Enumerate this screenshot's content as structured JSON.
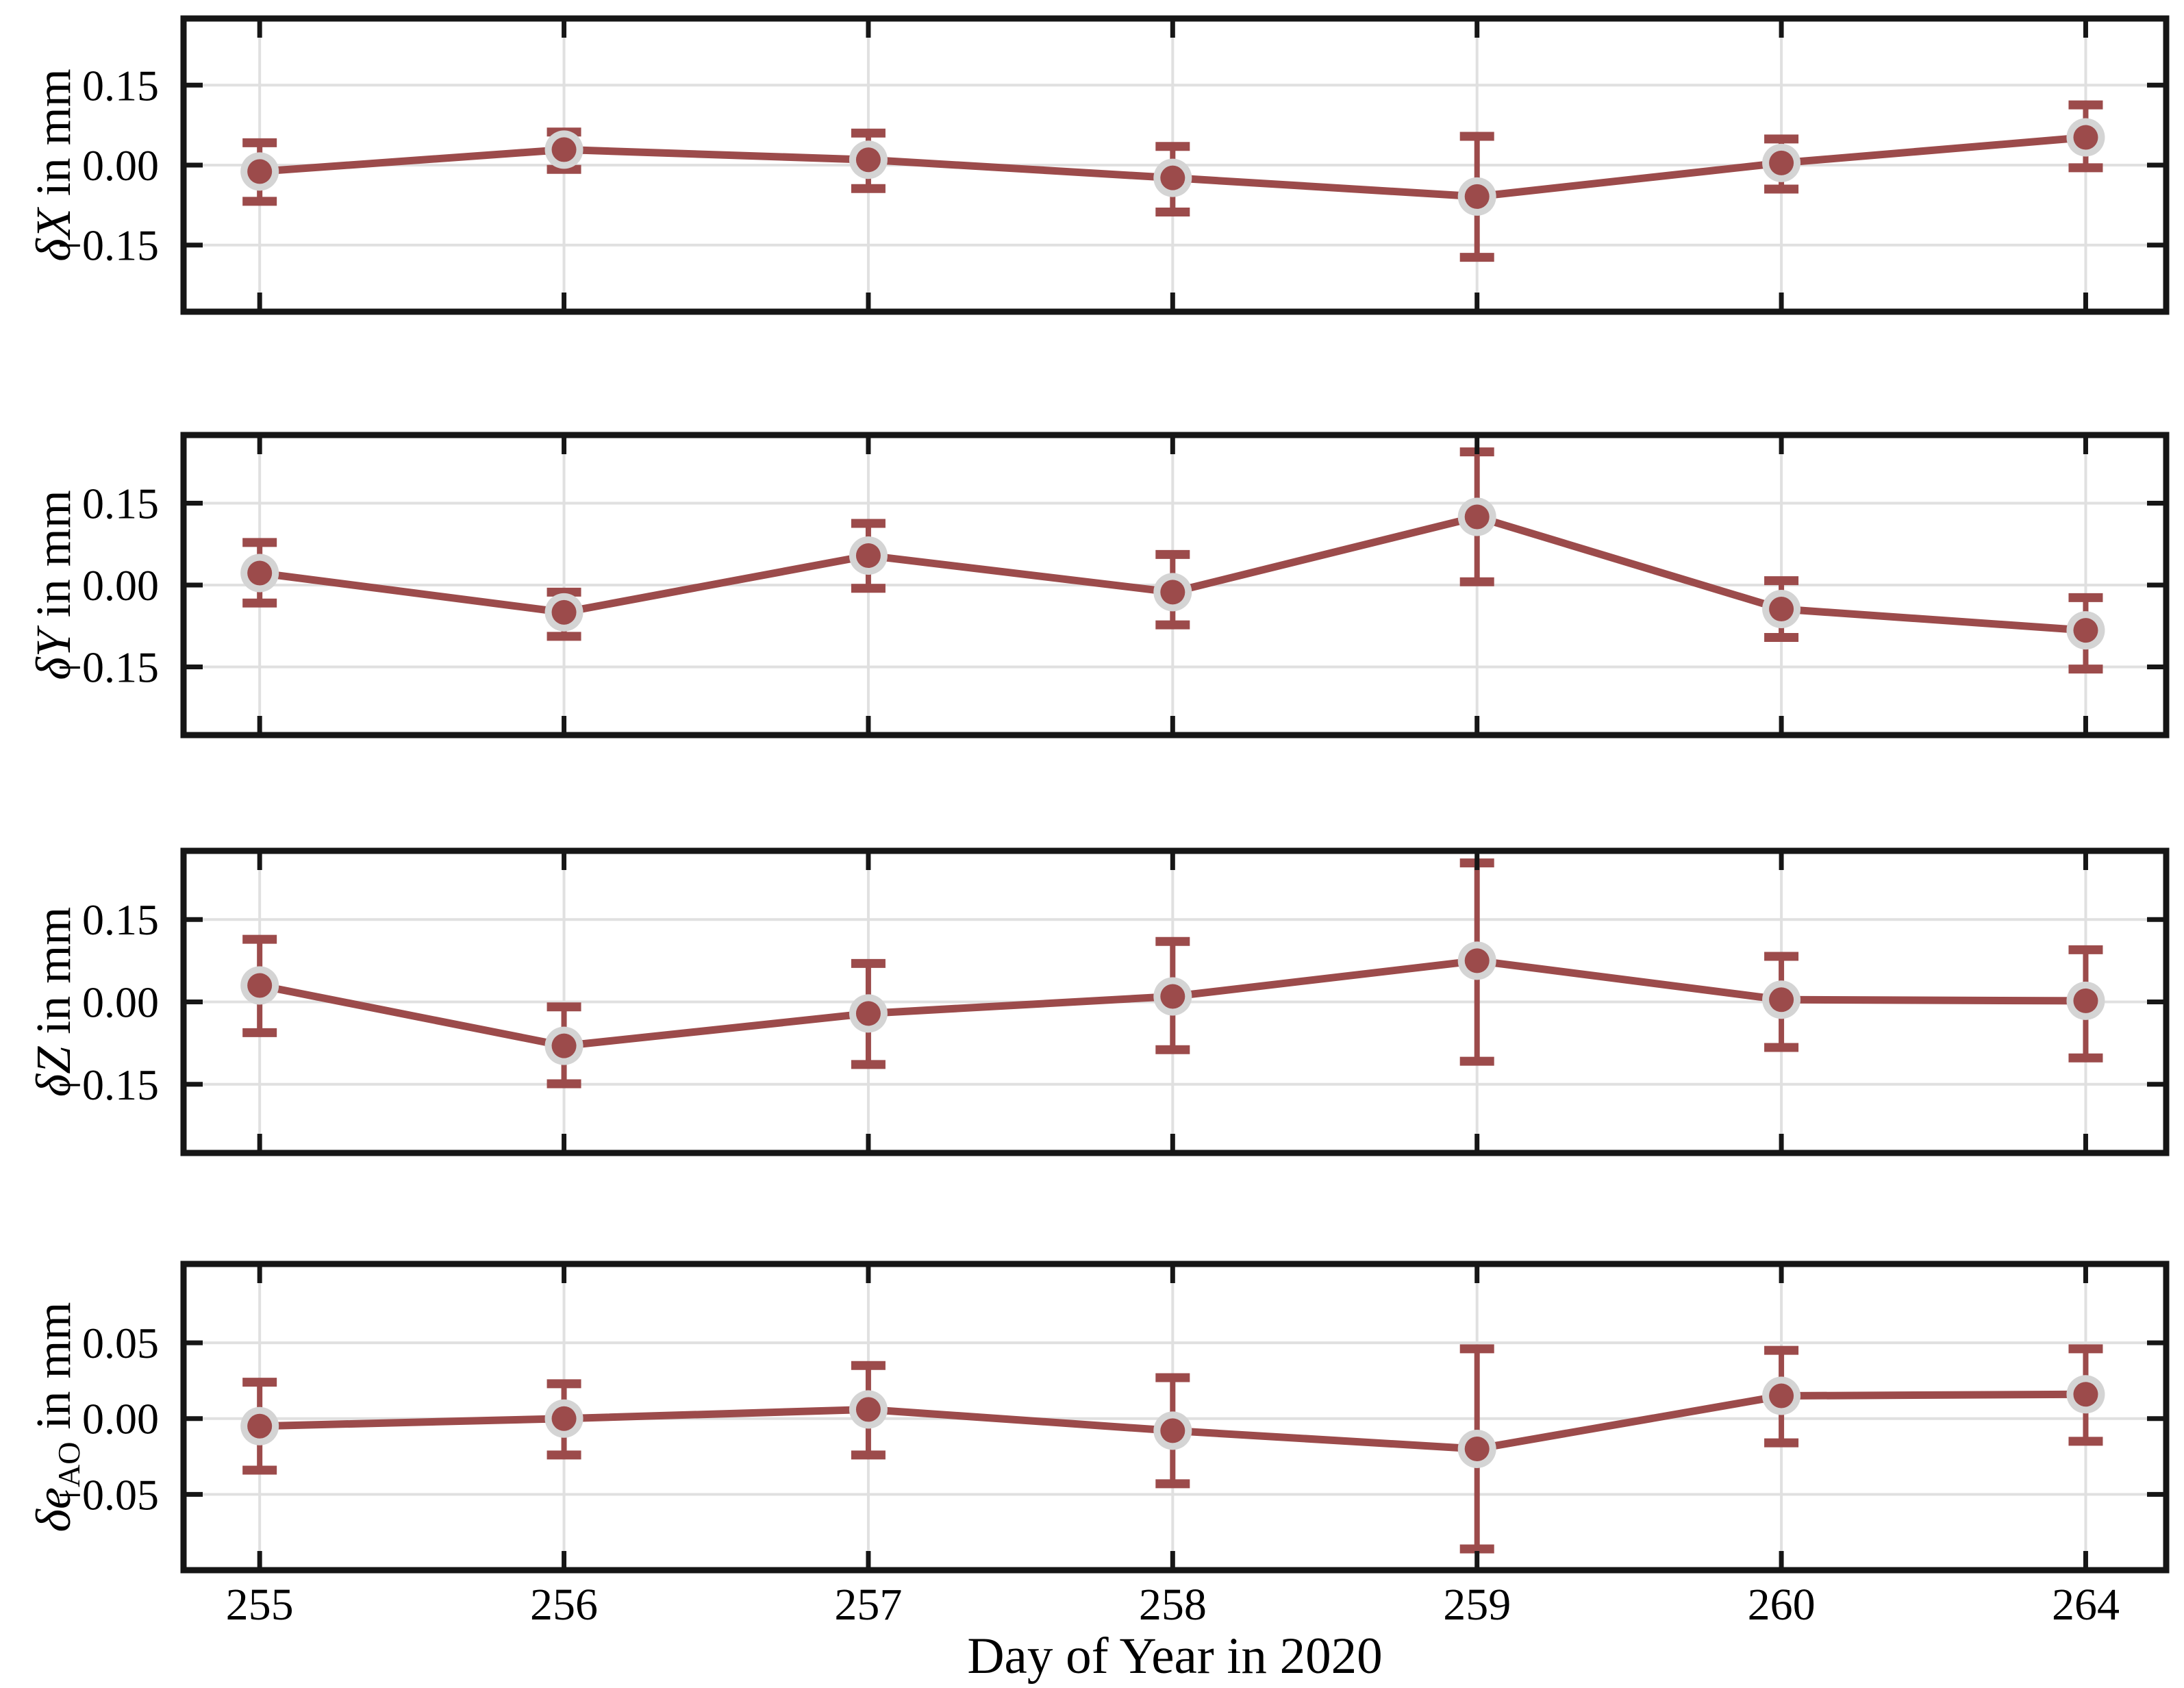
{
  "figure": {
    "type": "multi-panel-errorbar-line",
    "colors": {
      "series": "#9c4b4b",
      "marker_ring": "#d4d4d4",
      "grid": "#e0e0e0",
      "axis": "#161616",
      "text": "#000000",
      "background": "#ffffff"
    }
  },
  "x_axis": {
    "label": "Day of Year in 2020",
    "tick_labels": [
      "255",
      "256",
      "257",
      "258",
      "259",
      "260",
      "264"
    ],
    "tick_values": [
      255,
      256,
      257,
      258,
      259,
      260,
      264
    ]
  },
  "chart_data": [
    {
      "id": "delta-x",
      "type": "line",
      "title": "",
      "ylabel": {
        "var": "δX",
        "sub": "",
        "unit": " in mm"
      },
      "ylim": [
        -0.275,
        0.275
      ],
      "grid": true,
      "legend": "none",
      "yticks": [
        {
          "value": 0.15,
          "label": "0.15"
        },
        {
          "value": 0.0,
          "label": "0.00"
        },
        {
          "value": -0.15,
          "label": "−0.15"
        }
      ],
      "x": [
        255,
        256,
        257,
        258,
        259,
        260,
        264
      ],
      "y": [
        -0.012,
        0.029,
        0.01,
        -0.024,
        -0.059,
        0.004,
        0.052
      ],
      "err_lo": [
        -0.068,
        -0.008,
        -0.044,
        -0.088,
        -0.173,
        -0.045,
        -0.005
      ],
      "err_hi": [
        0.042,
        0.062,
        0.06,
        0.035,
        0.054,
        0.049,
        0.113
      ]
    },
    {
      "id": "delta-y",
      "type": "line",
      "title": "",
      "ylabel": {
        "var": "δY",
        "sub": "",
        "unit": " in mm"
      },
      "ylim": [
        -0.275,
        0.275
      ],
      "grid": true,
      "legend": "none",
      "yticks": [
        {
          "value": 0.15,
          "label": "0.15"
        },
        {
          "value": 0.0,
          "label": "0.00"
        },
        {
          "value": -0.15,
          "label": "−0.15"
        }
      ],
      "x": [
        255,
        256,
        257,
        258,
        259,
        260,
        264
      ],
      "y": [
        0.022,
        -0.05,
        0.054,
        -0.013,
        0.125,
        -0.044,
        -0.083
      ],
      "err_lo": [
        -0.033,
        -0.094,
        -0.006,
        -0.073,
        0.006,
        -0.096,
        -0.154
      ],
      "err_hi": [
        0.078,
        -0.013,
        0.113,
        0.056,
        0.244,
        0.008,
        -0.023
      ]
    },
    {
      "id": "delta-z",
      "type": "line",
      "title": "",
      "ylabel": {
        "var": "δZ",
        "sub": "",
        "unit": " in mm"
      },
      "ylim": [
        -0.275,
        0.275
      ],
      "grid": true,
      "legend": "none",
      "yticks": [
        {
          "value": 0.15,
          "label": "0.15"
        },
        {
          "value": 0.0,
          "label": "0.00"
        },
        {
          "value": -0.15,
          "label": "−0.15"
        }
      ],
      "x": [
        255,
        256,
        257,
        258,
        259,
        260,
        264
      ],
      "y": [
        0.03,
        -0.08,
        -0.021,
        0.01,
        0.075,
        0.004,
        0.002
      ],
      "err_lo": [
        -0.056,
        -0.149,
        -0.114,
        -0.087,
        -0.108,
        -0.083,
        -0.102
      ],
      "err_hi": [
        0.114,
        -0.009,
        0.07,
        0.11,
        0.253,
        0.083,
        0.095
      ]
    },
    {
      "id": "delta-e-ao",
      "type": "line",
      "title": "",
      "ylabel": {
        "var": "δe",
        "sub": "AO",
        "unit": " in mm"
      },
      "ylim": [
        -0.1,
        0.102
      ],
      "grid": true,
      "legend": "none",
      "yticks": [
        {
          "value": 0.05,
          "label": "0.05"
        },
        {
          "value": 0.0,
          "label": "0.00"
        },
        {
          "value": -0.05,
          "label": "−0.05"
        }
      ],
      "x": [
        255,
        256,
        257,
        258,
        259,
        260,
        264
      ],
      "y": [
        -0.005,
        0.0,
        0.006,
        -0.008,
        -0.02,
        0.015,
        0.016
      ],
      "err_lo": [
        -0.034,
        -0.024,
        -0.024,
        -0.043,
        -0.086,
        -0.016,
        -0.015
      ],
      "err_hi": [
        0.024,
        0.023,
        0.035,
        0.027,
        0.046,
        0.045,
        0.046
      ]
    }
  ]
}
